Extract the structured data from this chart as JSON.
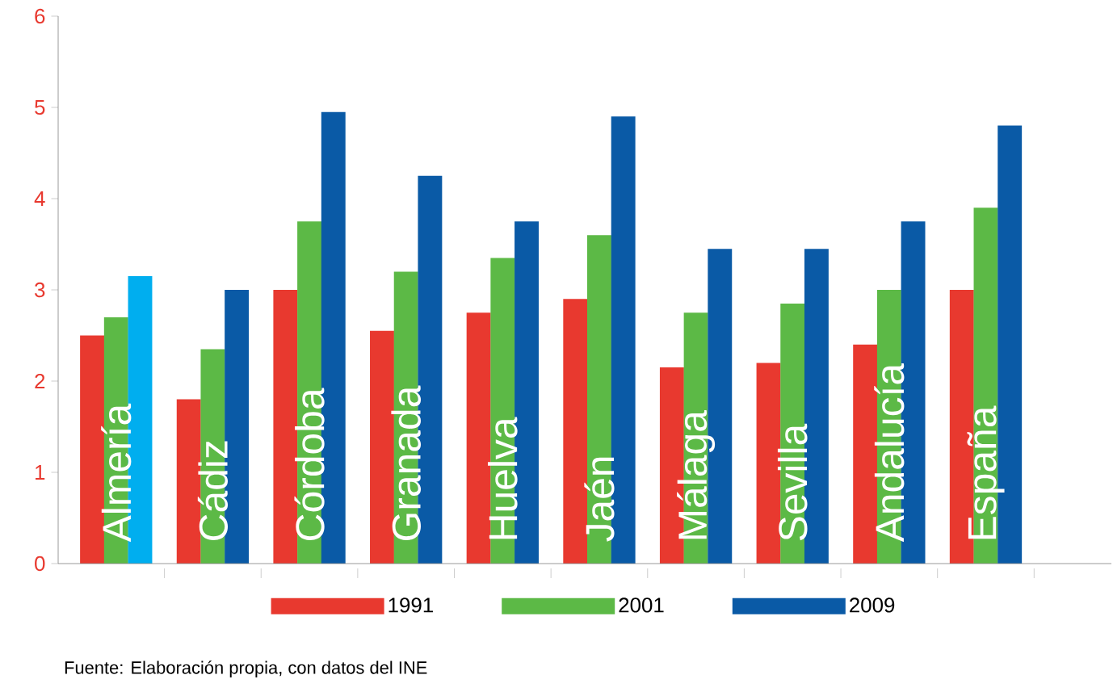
{
  "chart_data": {
    "type": "bar",
    "categories": [
      "Almería",
      "Cádiz",
      "Córdoba",
      "Granada",
      "Huelva",
      "Jaén",
      "Málaga",
      "Sevilla",
      "Andalucía",
      "España"
    ],
    "series": [
      {
        "name": "1991",
        "color": "#e8392f",
        "values": [
          2.5,
          1.8,
          3.0,
          2.55,
          2.75,
          2.9,
          2.15,
          2.2,
          2.4,
          3.0
        ]
      },
      {
        "name": "2001",
        "color": "#5cb946",
        "values": [
          2.7,
          2.35,
          3.75,
          3.2,
          3.35,
          3.6,
          2.75,
          2.85,
          3.0,
          3.9
        ]
      },
      {
        "name": "2009",
        "color": "#0a5aa6",
        "colors": [
          "#00aeef",
          "#0a5aa6",
          "#0a5aa6",
          "#0a5aa6",
          "#0a5aa6",
          "#0a5aa6",
          "#0a5aa6",
          "#0a5aa6",
          "#0a5aa6",
          "#0a5aa6"
        ],
        "values": [
          3.15,
          3.0,
          4.95,
          4.25,
          3.75,
          4.9,
          3.45,
          3.45,
          3.75,
          4.8
        ]
      }
    ],
    "ylim": [
      0,
      6
    ],
    "yticks": [
      0,
      1,
      2,
      3,
      4,
      5,
      6
    ],
    "grid": false,
    "legend": "bottom",
    "annotations": [
      "Fuente: Elaboración propia, con datos del INE"
    ]
  }
}
